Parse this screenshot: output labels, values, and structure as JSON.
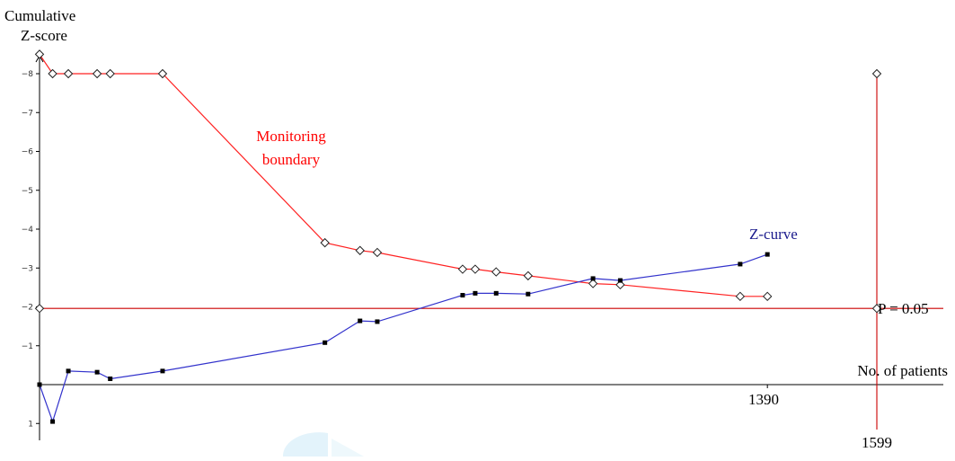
{
  "chart_data": {
    "type": "line",
    "xlabel": "No. of patients",
    "ylabel": [
      "Cumulative",
      "Z-score"
    ],
    "ylim": [
      1,
      -8
    ],
    "yticks": [
      -8,
      -7,
      -6,
      -5,
      -4,
      -3,
      -2,
      -1,
      1
    ],
    "xlim": [
      0,
      1599
    ],
    "xtick_labels": [
      "1390",
      "1599"
    ],
    "xticks": [
      1390,
      1599
    ],
    "reference_line": {
      "y": -1.96,
      "label": "P = 0.05",
      "color": "#cc0000"
    },
    "vertical_line": {
      "x": 1599,
      "color": "#cc0000"
    },
    "series": [
      {
        "name": "Monitoring boundary",
        "color": "#ff2222",
        "marker": "diamond",
        "points": [
          [
            0,
            -8.5
          ],
          [
            25,
            -8
          ],
          [
            55,
            -8
          ],
          [
            110,
            -8
          ],
          [
            135,
            -8
          ],
          [
            235,
            -8
          ],
          [
            545,
            -3.65
          ],
          [
            612,
            -3.45
          ],
          [
            645,
            -3.4
          ],
          [
            808,
            -2.97
          ],
          [
            832,
            -2.97
          ],
          [
            872,
            -2.9
          ],
          [
            933,
            -2.8
          ],
          [
            1057,
            -2.6
          ],
          [
            1109,
            -2.57
          ],
          [
            1338,
            -2.27
          ],
          [
            1390,
            -2.27
          ]
        ],
        "extra_markers": [
          [
            0,
            -1.96
          ],
          [
            1599,
            -1.96
          ],
          [
            1599,
            -8
          ]
        ]
      },
      {
        "name": "Z-curve",
        "color": "#3333cc",
        "marker": "square",
        "points": [
          [
            0,
            0
          ],
          [
            25,
            0.95
          ],
          [
            55,
            -0.35
          ],
          [
            110,
            -0.32
          ],
          [
            135,
            -0.15
          ],
          [
            235,
            -0.35
          ],
          [
            545,
            -1.08
          ],
          [
            612,
            -1.64
          ],
          [
            645,
            -1.62
          ],
          [
            808,
            -2.3
          ],
          [
            832,
            -2.35
          ],
          [
            872,
            -2.35
          ],
          [
            933,
            -2.33
          ],
          [
            1057,
            -2.73
          ],
          [
            1109,
            -2.68
          ],
          [
            1338,
            -3.1
          ],
          [
            1390,
            -3.35
          ]
        ]
      }
    ],
    "annotations": [
      {
        "text": [
          "Monitoring",
          "boundary"
        ],
        "color": "#ff0000"
      },
      {
        "text": [
          "Z-curve"
        ],
        "color": "#1a1a8c"
      }
    ]
  }
}
